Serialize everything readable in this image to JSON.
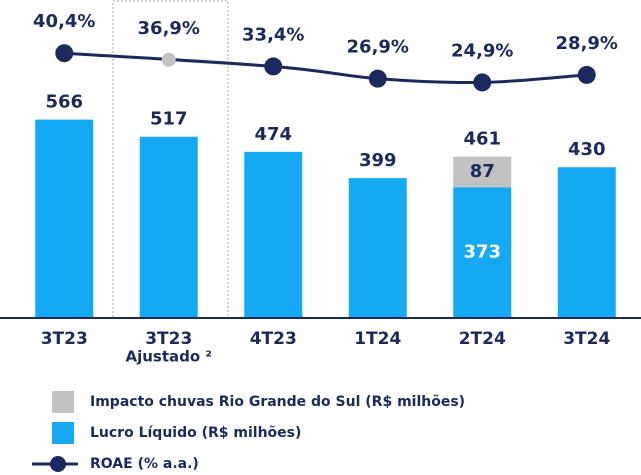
{
  "chart_data": {
    "type": "bar_line",
    "categories": [
      "3T23",
      [
        "3T23",
        "Ajustado ²"
      ],
      "4T23",
      "1T24",
      "2T24",
      "3T24"
    ],
    "series": [
      {
        "name": "Lucro Líquido (R$ milhões)",
        "color": "#14a9f2",
        "values": [
          566,
          517,
          474,
          399,
          373,
          430
        ],
        "label_color": "#ffffff"
      },
      {
        "name": "Impacto chuvas Rio Grande do Sul (R$ milhões)",
        "color": "#c2c2c2",
        "values": [
          null,
          null,
          null,
          null,
          87,
          null
        ],
        "label_color": "#1b2a5e"
      },
      {
        "name": "ROAE (% a.a.)",
        "type": "line",
        "axis": "y2",
        "color": "#1b2a5e",
        "values": [
          40.4,
          36.9,
          33.4,
          26.9,
          24.9,
          28.9
        ],
        "value_labels": [
          "40,4%",
          "36,9%",
          "33,4%",
          "26,9%",
          "24,9%",
          "28,9%"
        ],
        "point_colors": [
          "#1b2a5e",
          "#c2c2c2",
          "#1b2a5e",
          "#1b2a5e",
          "#1b2a5e",
          "#1b2a5e"
        ]
      }
    ],
    "totals": [
      null,
      null,
      null,
      null,
      461,
      null
    ],
    "ylim": [
      0,
      850
    ],
    "y2lim": [
      -100,
      58
    ]
  }
}
